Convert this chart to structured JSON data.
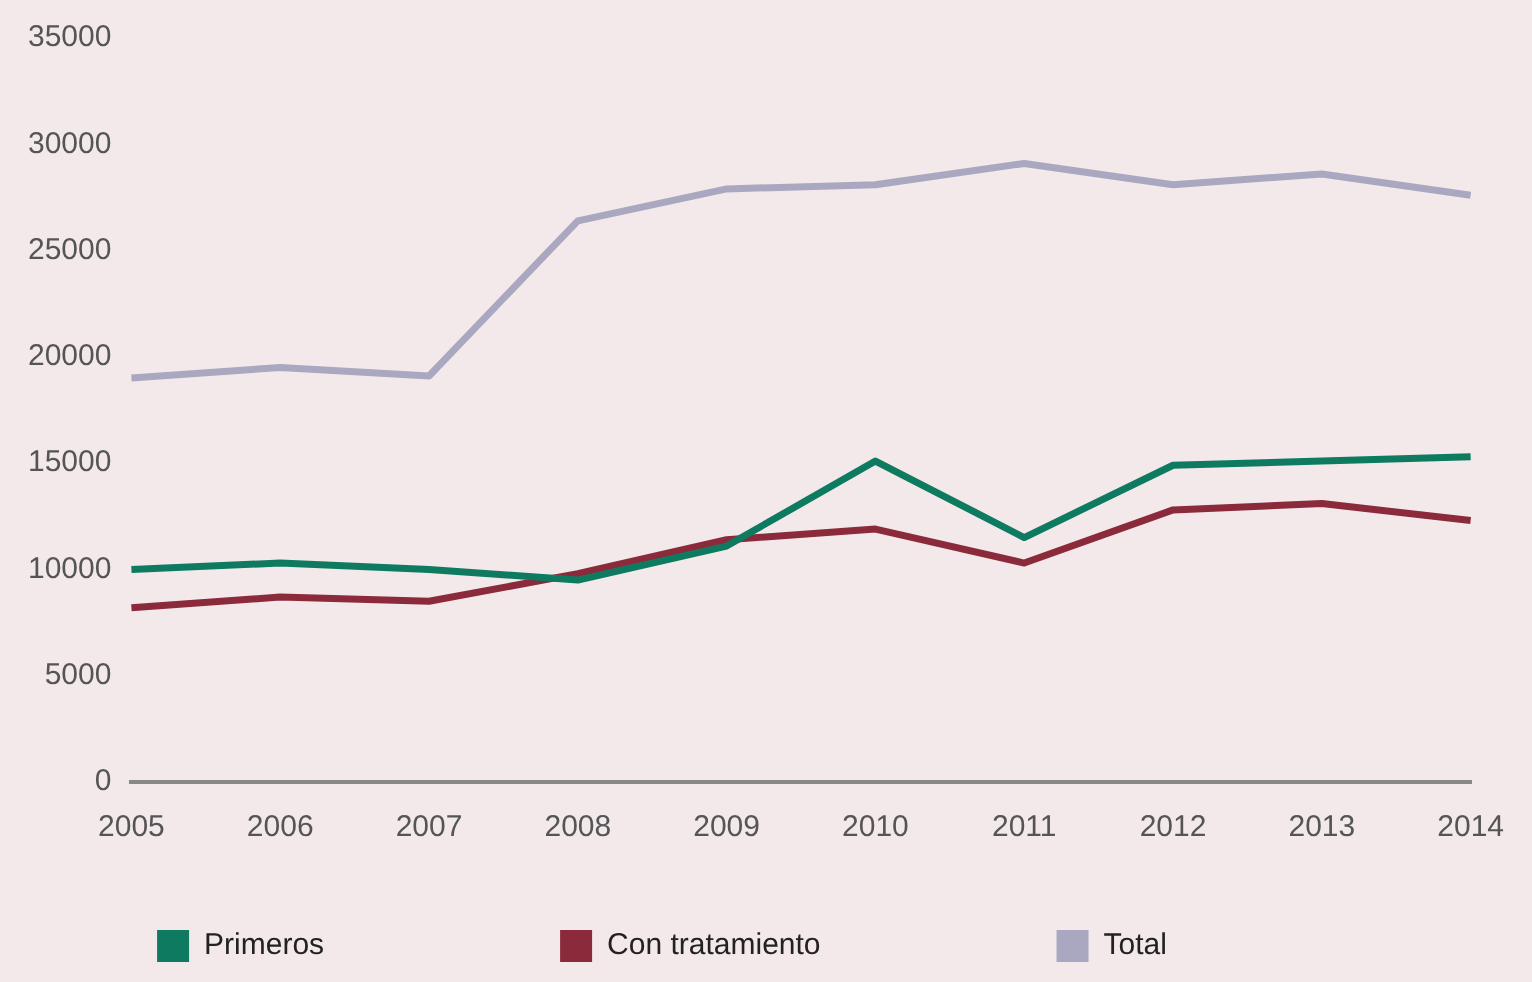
{
  "chart_data": {
    "type": "line",
    "categories": [
      "2005",
      "2006",
      "2007",
      "2008",
      "2009",
      "2010",
      "2011",
      "2012",
      "2013",
      "2014"
    ],
    "series": [
      {
        "name": "Primeros",
        "color": "#0e7a5f",
        "values": [
          10000,
          10300,
          10000,
          9500,
          11100,
          15100,
          11500,
          14900,
          15100,
          15300
        ]
      },
      {
        "name": "Con tratamiento",
        "color": "#8b2a3a",
        "values": [
          8200,
          8700,
          8500,
          9800,
          11400,
          11900,
          10300,
          12800,
          13100,
          12300
        ]
      },
      {
        "name": "Total",
        "color": "#a9a8c0",
        "values": [
          19000,
          19500,
          19100,
          26400,
          27900,
          28100,
          29100,
          28100,
          28600,
          27600
        ]
      }
    ],
    "ylim": [
      0,
      35000
    ],
    "yticks": [
      0,
      5000,
      10000,
      15000,
      20000,
      25000,
      30000,
      35000
    ],
    "grid": false,
    "legend": "bottom",
    "marker": "none",
    "line_style": "solid"
  }
}
